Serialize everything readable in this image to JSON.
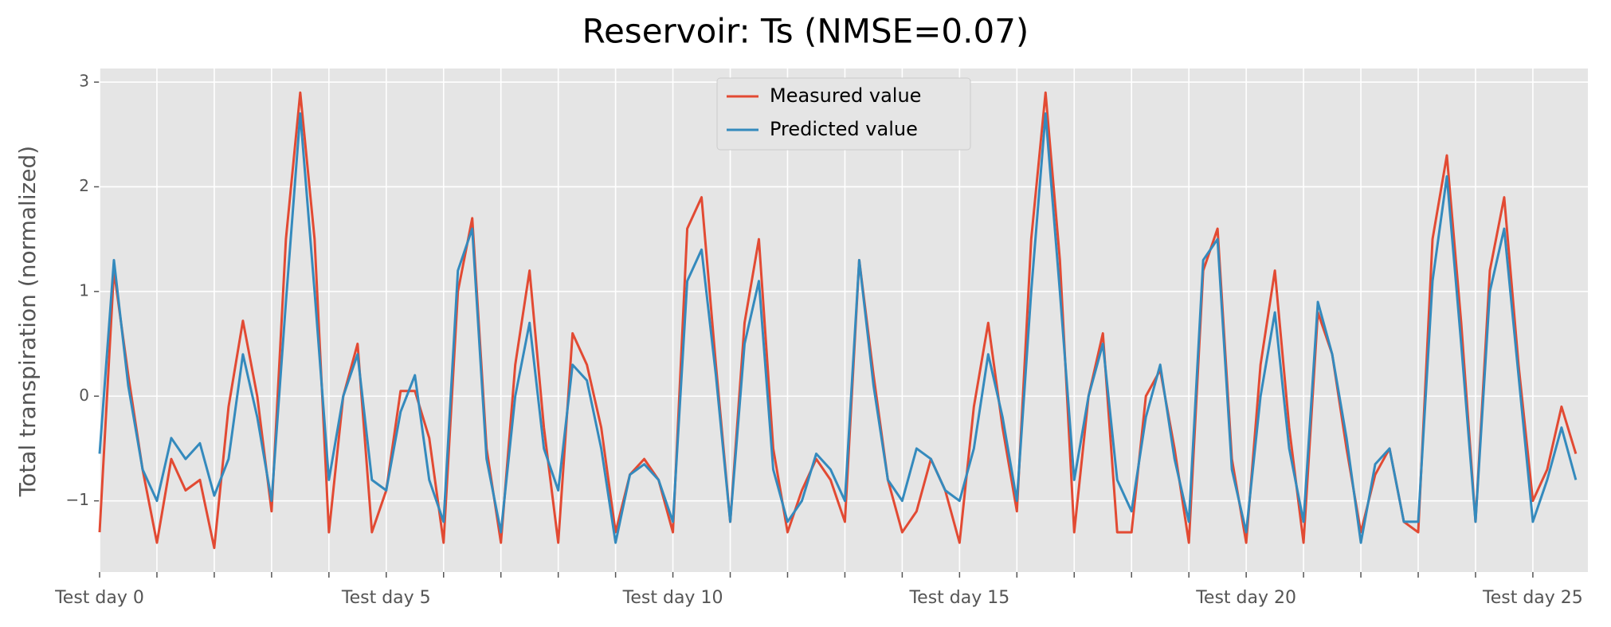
{
  "chart_data": {
    "type": "line",
    "title": "Reservoir: Ts (NMSE=0.07)",
    "y_label": "Total transpiration (normalized)",
    "x": [
      0,
      0.25,
      0.5,
      0.75,
      1,
      1.25,
      1.5,
      1.75,
      2,
      2.25,
      2.5,
      2.75,
      3,
      3.25,
      3.5,
      3.75,
      4,
      4.25,
      4.5,
      4.75,
      5,
      5.25,
      5.5,
      5.75,
      6,
      6.25,
      6.5,
      6.75,
      7,
      7.25,
      7.5,
      7.75,
      8,
      8.25,
      8.5,
      8.75,
      9,
      9.25,
      9.5,
      9.75,
      10,
      10.25,
      10.5,
      10.75,
      11,
      11.25,
      11.5,
      11.75,
      12,
      12.25,
      12.5,
      12.75,
      13,
      13.25,
      13.5,
      13.75,
      14,
      14.25,
      14.5,
      14.75,
      15,
      15.25,
      15.5,
      15.75,
      16,
      16.25,
      16.5,
      16.75,
      17,
      17.25,
      17.5,
      17.75,
      18,
      18.25,
      18.5,
      18.75,
      19,
      19.25,
      19.5,
      19.75,
      20,
      20.25,
      20.5,
      20.75,
      21,
      21.25,
      21.5,
      21.75,
      22,
      22.25,
      22.5,
      22.75,
      23,
      23.25,
      23.5,
      23.75,
      24,
      24.25,
      24.5,
      24.75,
      25,
      25.25,
      25.5,
      25.75
    ],
    "series": [
      {
        "name": "Measured value",
        "color": "#E24A33",
        "values": [
          -1.3,
          1.2,
          0.2,
          -0.7,
          -1.4,
          -0.6,
          -0.9,
          -0.8,
          -1.45,
          -0.1,
          0.72,
          0.0,
          -1.1,
          1.5,
          2.9,
          1.5,
          -1.3,
          0.0,
          0.5,
          -1.3,
          -0.9,
          0.05,
          0.05,
          -0.4,
          -1.4,
          1.0,
          1.7,
          -0.5,
          -1.4,
          0.3,
          1.2,
          -0.3,
          -1.4,
          0.6,
          0.3,
          -0.3,
          -1.3,
          -0.75,
          -0.6,
          -0.8,
          -1.3,
          1.6,
          1.9,
          0.3,
          -1.2,
          0.7,
          1.5,
          -0.5,
          -1.3,
          -0.9,
          -0.6,
          -0.8,
          -1.2,
          1.3,
          0.2,
          -0.8,
          -1.3,
          -1.1,
          -0.6,
          -0.9,
          -1.4,
          -0.1,
          0.7,
          -0.3,
          -1.1,
          1.5,
          2.9,
          1.3,
          -1.3,
          0.0,
          0.6,
          -1.3,
          -1.3,
          0.0,
          0.25,
          -0.5,
          -1.4,
          1.2,
          1.6,
          -0.6,
          -1.4,
          0.3,
          1.2,
          -0.3,
          -1.4,
          0.8,
          0.4,
          -0.5,
          -1.3,
          -0.75,
          -0.5,
          -1.2,
          -1.3,
          1.5,
          2.3,
          0.7,
          -1.2,
          1.2,
          1.9,
          0.3,
          -1.0,
          -0.7,
          -0.1,
          -0.55
        ]
      },
      {
        "name": "Predicted value",
        "color": "#348ABD",
        "values": [
          -0.55,
          1.3,
          0.1,
          -0.7,
          -1.0,
          -0.4,
          -0.6,
          -0.45,
          -0.95,
          -0.6,
          0.4,
          -0.2,
          -1.0,
          0.9,
          2.7,
          1.0,
          -0.8,
          0.0,
          0.4,
          -0.8,
          -0.9,
          -0.15,
          0.2,
          -0.8,
          -1.2,
          1.2,
          1.6,
          -0.6,
          -1.3,
          0.0,
          0.7,
          -0.5,
          -0.9,
          0.3,
          0.15,
          -0.5,
          -1.4,
          -0.75,
          -0.65,
          -0.8,
          -1.2,
          1.1,
          1.4,
          0.2,
          -1.2,
          0.5,
          1.1,
          -0.7,
          -1.2,
          -1.0,
          -0.55,
          -0.7,
          -1.0,
          1.3,
          0.1,
          -0.8,
          -1.0,
          -0.5,
          -0.6,
          -0.9,
          -1.0,
          -0.5,
          0.4,
          -0.2,
          -1.0,
          1.0,
          2.7,
          1.0,
          -0.8,
          0.0,
          0.5,
          -0.8,
          -1.1,
          -0.2,
          0.3,
          -0.6,
          -1.2,
          1.3,
          1.5,
          -0.7,
          -1.3,
          0.0,
          0.8,
          -0.5,
          -1.2,
          0.9,
          0.4,
          -0.4,
          -1.4,
          -0.65,
          -0.5,
          -1.2,
          -1.2,
          1.1,
          2.1,
          0.5,
          -1.2,
          1.0,
          1.6,
          0.2,
          -1.2,
          -0.8,
          -0.3,
          -0.8
        ]
      }
    ],
    "xlim": [
      0,
      25.96
    ],
    "xticks": [
      {
        "value": 0,
        "label": "Test day 0"
      },
      {
        "value": 1,
        "label": null
      },
      {
        "value": 2,
        "label": null
      },
      {
        "value": 3,
        "label": null
      },
      {
        "value": 4,
        "label": null
      },
      {
        "value": 5,
        "label": "Test day 5"
      },
      {
        "value": 6,
        "label": null
      },
      {
        "value": 7,
        "label": null
      },
      {
        "value": 8,
        "label": null
      },
      {
        "value": 9,
        "label": null
      },
      {
        "value": 10,
        "label": "Test day 10"
      },
      {
        "value": 11,
        "label": null
      },
      {
        "value": 12,
        "label": null
      },
      {
        "value": 13,
        "label": null
      },
      {
        "value": 14,
        "label": null
      },
      {
        "value": 15,
        "label": "Test day 15"
      },
      {
        "value": 16,
        "label": null
      },
      {
        "value": 17,
        "label": null
      },
      {
        "value": 18,
        "label": null
      },
      {
        "value": 19,
        "label": null
      },
      {
        "value": 20,
        "label": "Test day 20"
      },
      {
        "value": 21,
        "label": null
      },
      {
        "value": 22,
        "label": null
      },
      {
        "value": 23,
        "label": null
      },
      {
        "value": 24,
        "label": null
      },
      {
        "value": 25,
        "label": "Test day 25"
      }
    ],
    "ylim": [
      -1.68,
      3.13
    ],
    "yticks": [
      {
        "value": -1,
        "label": "−1"
      },
      0,
      1,
      2,
      3
    ],
    "grid": true,
    "legend": "upper center"
  }
}
